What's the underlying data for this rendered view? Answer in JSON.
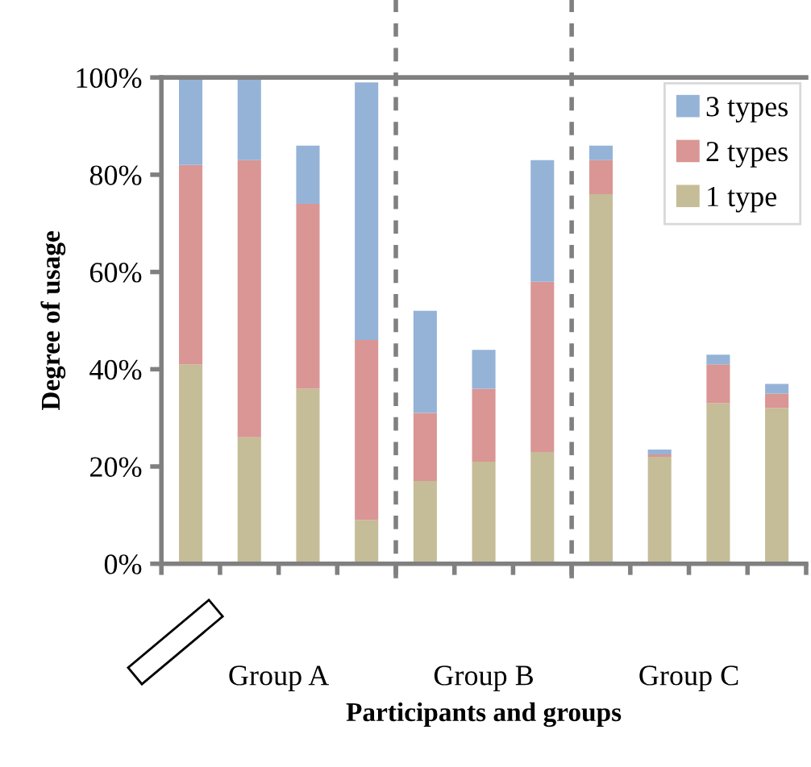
{
  "chart_data": {
    "type": "bar",
    "stacked": true,
    "xlabel": "Participants and groups",
    "ylabel": "Degree of usage",
    "categories": [
      null,
      null,
      null,
      null,
      null,
      null,
      null,
      null,
      null,
      null,
      null
    ],
    "series": [
      {
        "name": "1 type",
        "color": "#c4bd97",
        "values": [
          41,
          26,
          36,
          9,
          17,
          21,
          23,
          76,
          22,
          33,
          32
        ]
      },
      {
        "name": "2 types",
        "color": "#d99694",
        "values": [
          41,
          57,
          38,
          37,
          14,
          15,
          35,
          7,
          0.5,
          8,
          3
        ]
      },
      {
        "name": "3 types",
        "color": "#95b3d7",
        "values": [
          18,
          17,
          12,
          53,
          21,
          8,
          25,
          3,
          1,
          2,
          2
        ]
      }
    ],
    "ylim": [
      0,
      100
    ],
    "yticks": [
      {
        "value": 0,
        "label": "0%"
      },
      {
        "value": 20,
        "label": "20%"
      },
      {
        "value": 40,
        "label": "40%"
      },
      {
        "value": 60,
        "label": "60%"
      },
      {
        "value": 80,
        "label": "80%"
      },
      {
        "value": 100,
        "label": "100%"
      }
    ],
    "annotations": [
      "Group A",
      "Group B",
      "Group C"
    ],
    "legend": "top right",
    "grid": false
  }
}
